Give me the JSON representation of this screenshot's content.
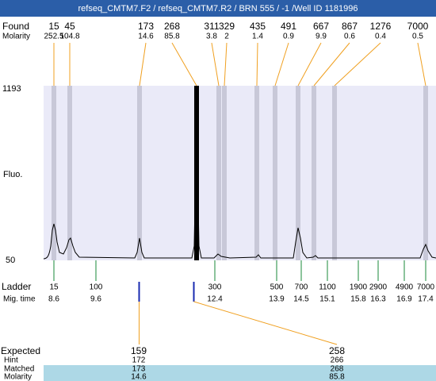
{
  "header": {
    "title": "refseq_CMTM7.F2 / refseq_CMTM7.R2 / BRN 555 / -1 /Well ID 1181996"
  },
  "found": {
    "label": "Found",
    "values": [
      15,
      45,
      173,
      268,
      311,
      329,
      435,
      491,
      667,
      867,
      1276,
      7000
    ]
  },
  "molarity": {
    "label": "Molarity",
    "values": [
      252.5,
      104.8,
      14.6,
      85.8,
      3.8,
      2,
      1.4,
      0.9,
      9.9,
      0.6,
      0.4,
      0.5
    ]
  },
  "y_axis": {
    "label": "Fluo.",
    "ticks": [
      1193,
      50
    ]
  },
  "ladder": {
    "label": "Ladder",
    "sizes": [
      15,
      100,
      300,
      500,
      700,
      1100,
      1900,
      2900,
      4900,
      7000
    ]
  },
  "mig_time": {
    "label": "Mig. time",
    "values": [
      8.6,
      9.6,
      12.4,
      13.9,
      14.5,
      15.1,
      15.8,
      16.3,
      16.9,
      17.4
    ]
  },
  "expected": {
    "label": "Expected",
    "values": [
      159,
      258
    ]
  },
  "hint": {
    "label": "Hint",
    "values": [
      172,
      266
    ]
  },
  "matched": {
    "label": "Matched",
    "values": [
      173,
      268
    ]
  },
  "matched_molarity": {
    "label": "Molarity",
    "values": [
      14.6,
      85.8
    ]
  }
}
